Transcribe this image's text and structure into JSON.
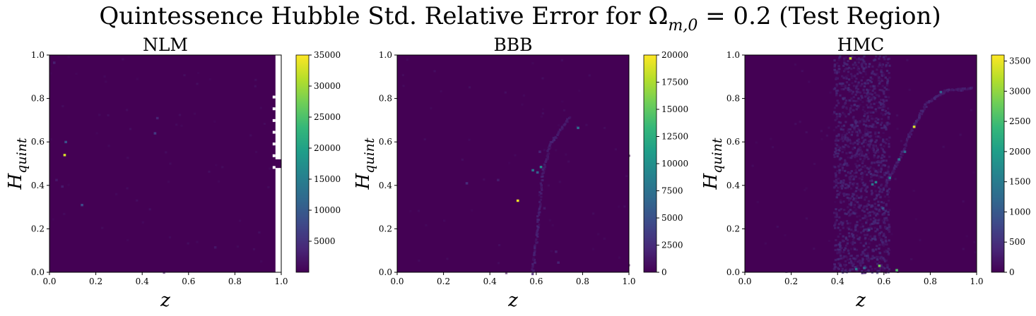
{
  "figure": {
    "suptitle": "Quintessence Hubble Std. Relative Error for Ωm,0 = 0.2 (Test Region)",
    "suptitle_main": "Quintessence Hubble Std. Relative Error for Ω",
    "suptitle_sub": "m,0",
    "suptitle_rest": " = 0.2 (Test Region)",
    "background_color": "#440154"
  },
  "chart_data": [
    {
      "type": "heatmap",
      "title": "NLM",
      "xlabel": "z",
      "ylabel_main": "H",
      "ylabel_sub": "quint",
      "xlim": [
        0.0,
        1.0
      ],
      "ylim": [
        0.0,
        1.0
      ],
      "x_ticks": [
        "0.0",
        "0.2",
        "0.4",
        "0.6",
        "0.8",
        "1.0"
      ],
      "y_ticks": [
        "0.0",
        "0.2",
        "0.4",
        "0.6",
        "0.8",
        "1.0"
      ],
      "colorbar": {
        "min": 0,
        "max": 35000,
        "ticks": [
          5000,
          10000,
          15000,
          20000,
          25000,
          30000,
          35000
        ]
      },
      "hotspots": [
        {
          "x": 0.06,
          "y": 0.545,
          "v": 33000
        },
        {
          "x": 0.065,
          "y": 0.605,
          "v": 9000
        },
        {
          "x": 0.135,
          "y": 0.315,
          "v": 8000
        },
        {
          "x": 0.45,
          "y": 0.645,
          "v": 6000
        },
        {
          "x": 0.46,
          "y": 0.715,
          "v": 3500
        },
        {
          "x": 0.015,
          "y": 0.97,
          "v": 3000
        },
        {
          "x": 0.05,
          "y": 0.4,
          "v": 2500
        },
        {
          "x": 0.025,
          "y": 0.43,
          "v": 2000
        },
        {
          "x": 0.71,
          "y": 0.12,
          "v": 2000
        }
      ],
      "missing_column": {
        "x_from": 0.975,
        "x_to": 1.0
      }
    },
    {
      "type": "heatmap",
      "title": "BBB",
      "xlabel": "z",
      "ylabel_main": "H",
      "ylabel_sub": "quint",
      "xlim": [
        0.0,
        1.0
      ],
      "ylim": [
        0.0,
        1.0
      ],
      "x_ticks": [
        "0.0",
        "0.2",
        "0.4",
        "0.6",
        "0.8",
        "1.0"
      ],
      "y_ticks": [
        "0.0",
        "0.2",
        "0.4",
        "0.6",
        "0.8",
        "1.0"
      ],
      "colorbar": {
        "min": 0,
        "max": 20000,
        "ticks": [
          0,
          2500,
          5000,
          7500,
          10000,
          12500,
          15000,
          17500,
          20000
        ]
      },
      "hotspots": [
        {
          "x": 0.515,
          "y": 0.335,
          "v": 19500
        },
        {
          "x": 0.615,
          "y": 0.49,
          "v": 10000
        },
        {
          "x": 0.58,
          "y": 0.475,
          "v": 8000
        },
        {
          "x": 0.6,
          "y": 0.465,
          "v": 6000
        },
        {
          "x": 0.775,
          "y": 0.67,
          "v": 7000
        },
        {
          "x": 0.295,
          "y": 0.415,
          "v": 2500
        },
        {
          "x": 0.43,
          "y": 0.43,
          "v": 1500
        },
        {
          "x": 0.61,
          "y": 0.56,
          "v": 2000
        },
        {
          "x": 0.69,
          "y": 0.05,
          "v": 1800
        },
        {
          "x": 0.68,
          "y": 0.1,
          "v": 1500
        },
        {
          "x": 0.63,
          "y": 0.3,
          "v": 1200
        }
      ],
      "ridge": [
        [
          0.58,
          0.0
        ],
        [
          0.6,
          0.2
        ],
        [
          0.62,
          0.45
        ],
        [
          0.66,
          0.6
        ],
        [
          0.74,
          0.72
        ]
      ]
    },
    {
      "type": "heatmap",
      "title": "HMC",
      "xlabel": "z",
      "ylabel_main": "H",
      "ylabel_sub": "quint",
      "xlim": [
        0.0,
        1.0
      ],
      "ylim": [
        0.0,
        1.0
      ],
      "x_ticks": [
        "0.0",
        "0.2",
        "0.4",
        "0.6",
        "0.8",
        "1.0"
      ],
      "y_ticks": [
        "0.0",
        "0.2",
        "0.4",
        "0.6",
        "0.8",
        "1.0"
      ],
      "colorbar": {
        "min": 0,
        "max": 3600,
        "ticks": [
          0,
          500,
          1000,
          1500,
          2000,
          2500,
          3000,
          3500
        ]
      },
      "hotspots": [
        {
          "x": 0.725,
          "y": 0.675,
          "v": 3400
        },
        {
          "x": 0.45,
          "y": 0.99,
          "v": 3300
        },
        {
          "x": 0.575,
          "y": 0.035,
          "v": 2800
        },
        {
          "x": 0.65,
          "y": 0.015,
          "v": 2600
        },
        {
          "x": 0.56,
          "y": 0.42,
          "v": 1600
        },
        {
          "x": 0.545,
          "y": 0.41,
          "v": 1400
        },
        {
          "x": 0.62,
          "y": 0.44,
          "v": 1500
        },
        {
          "x": 0.685,
          "y": 0.56,
          "v": 1200
        },
        {
          "x": 0.84,
          "y": 0.835,
          "v": 1100
        },
        {
          "x": 0.66,
          "y": 0.525,
          "v": 1300
        },
        {
          "x": 0.475,
          "y": 0.02,
          "v": 1500
        },
        {
          "x": 0.51,
          "y": 0.025,
          "v": 1200
        },
        {
          "x": 0.59,
          "y": 0.3,
          "v": 900
        },
        {
          "x": 0.53,
          "y": 0.2,
          "v": 800
        }
      ],
      "band": {
        "x_from": 0.38,
        "x_to": 0.62
      },
      "ridge": [
        [
          0.6,
          0.4
        ],
        [
          0.66,
          0.52
        ],
        [
          0.72,
          0.67
        ],
        [
          0.78,
          0.78
        ],
        [
          0.86,
          0.84
        ],
        [
          0.98,
          0.85
        ]
      ]
    }
  ]
}
